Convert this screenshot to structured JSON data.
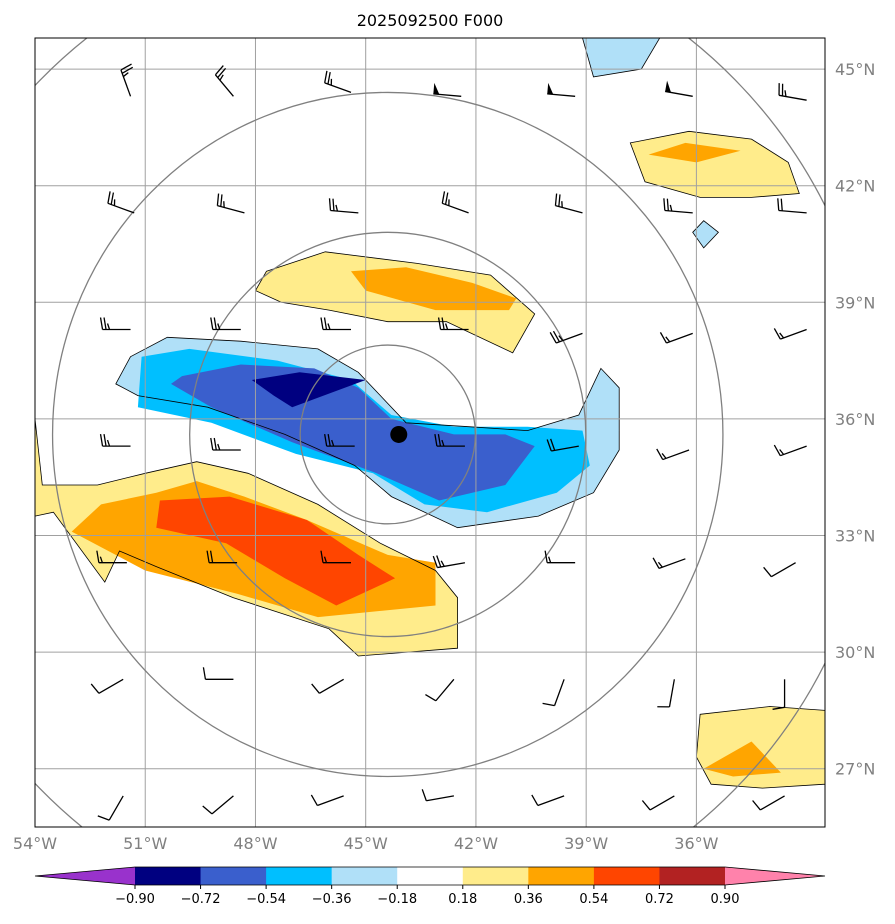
{
  "chart_data": {
    "type": "heatmap",
    "title": "2025092500 F000",
    "projection": "polar stereographic map with filled contours, wind barbs and range rings",
    "lon_range": [
      -54,
      -32.5
    ],
    "lat_range": [
      25.5,
      45.8
    ],
    "lon_ticks": [
      -54,
      -51,
      -48,
      -45,
      -42,
      -39,
      -36
    ],
    "lat_ticks": [
      27,
      30,
      33,
      36,
      39,
      42,
      45
    ],
    "lon_tick_labels": [
      "54°W",
      "51°W",
      "48°W",
      "45°W",
      "42°W",
      "39°W",
      "36°W"
    ],
    "lat_tick_labels": [
      "27°N",
      "30°N",
      "33°N",
      "36°N",
      "39°N",
      "42°N",
      "45°N"
    ],
    "grid": true,
    "center_marker": {
      "lon": -44.1,
      "lat": 35.6
    },
    "range_rings_center": {
      "lon": -44.4,
      "lat": 35.6
    },
    "range_ring_radii_deg_lat": [
      2.3,
      5.2,
      8.8,
      12.9
    ],
    "colorbar": {
      "orientation": "horizontal",
      "extend": "both",
      "levels": [
        -0.9,
        -0.72,
        -0.54,
        -0.36,
        -0.18,
        0.18,
        0.36,
        0.54,
        0.72,
        0.9
      ],
      "tick_labels": [
        "−0.90",
        "−0.72",
        "−0.54",
        "−0.36",
        "−0.18",
        "0.18",
        "0.36",
        "0.54",
        "0.72",
        "0.90"
      ],
      "colors": [
        "#9932cc",
        "#000080",
        "#3a5fcd",
        "#00bfff",
        "#b0e0f8",
        "#ffffff",
        "#ffec8b",
        "#ffa500",
        "#ff4500",
        "#b22222",
        "#ff82ab"
      ]
    },
    "filled_regions": [
      {
        "level": -0.18,
        "color": "#b0e0f8",
        "points": [
          [
            -51.4,
            37.6
          ],
          [
            -50.4,
            38.1
          ],
          [
            -48.4,
            38.0
          ],
          [
            -46.3,
            37.8
          ],
          [
            -45.2,
            37.2
          ],
          [
            -43.9,
            35.9
          ],
          [
            -42.2,
            35.8
          ],
          [
            -40.6,
            35.7
          ],
          [
            -39.2,
            36.1
          ],
          [
            -38.6,
            37.3
          ],
          [
            -38.1,
            36.8
          ],
          [
            -38.1,
            35.2
          ],
          [
            -38.8,
            34.1
          ],
          [
            -40.3,
            33.5
          ],
          [
            -42.5,
            33.2
          ],
          [
            -44.3,
            34.0
          ],
          [
            -45.3,
            34.8
          ],
          [
            -47.2,
            35.6
          ],
          [
            -49.3,
            36.3
          ],
          [
            -51.2,
            36.6
          ],
          [
            -51.8,
            36.9
          ]
        ]
      },
      {
        "level": -0.36,
        "color": "#00bfff",
        "points": [
          [
            -51.1,
            37.6
          ],
          [
            -49.8,
            37.8
          ],
          [
            -47.4,
            37.5
          ],
          [
            -45.4,
            37.0
          ],
          [
            -44.3,
            36.1
          ],
          [
            -42.6,
            35.8
          ],
          [
            -40.6,
            35.8
          ],
          [
            -39.1,
            35.7
          ],
          [
            -38.9,
            34.8
          ],
          [
            -39.8,
            34.1
          ],
          [
            -41.7,
            33.6
          ],
          [
            -43.4,
            33.8
          ],
          [
            -44.8,
            34.6
          ],
          [
            -46.9,
            35.1
          ],
          [
            -49.2,
            35.9
          ],
          [
            -51.2,
            36.3
          ]
        ]
      },
      {
        "level": -0.54,
        "color": "#3a5fcd",
        "points": [
          [
            -50.0,
            37.1
          ],
          [
            -48.4,
            37.4
          ],
          [
            -46.4,
            37.3
          ],
          [
            -45.2,
            36.8
          ],
          [
            -44.3,
            36.0
          ],
          [
            -42.6,
            35.6
          ],
          [
            -41.2,
            35.6
          ],
          [
            -40.4,
            35.3
          ],
          [
            -41.2,
            34.3
          ],
          [
            -43.0,
            33.9
          ],
          [
            -44.7,
            34.6
          ],
          [
            -47.0,
            35.4
          ],
          [
            -49.2,
            36.3
          ],
          [
            -50.3,
            36.9
          ]
        ]
      },
      {
        "level": -0.72,
        "color": "#000080",
        "points": [
          [
            -48.1,
            37.0
          ],
          [
            -46.8,
            37.2
          ],
          [
            -45.0,
            37.0
          ],
          [
            -47.0,
            36.3
          ],
          [
            -47.5,
            36.6
          ]
        ]
      },
      {
        "level": 0.18,
        "color": "#ffec8b",
        "points": [
          [
            -54,
            36.0
          ],
          [
            -54,
            33.5
          ],
          [
            -53.5,
            33.6
          ],
          [
            -52.1,
            31.8
          ],
          [
            -51.7,
            32.6
          ],
          [
            -50.7,
            32.2
          ],
          [
            -48.6,
            31.4
          ],
          [
            -46.0,
            30.6
          ],
          [
            -45.2,
            29.9
          ],
          [
            -42.5,
            30.1
          ],
          [
            -42.5,
            31.4
          ],
          [
            -43.1,
            32.1
          ],
          [
            -44.6,
            32.8
          ],
          [
            -46.3,
            33.8
          ],
          [
            -48.2,
            34.6
          ],
          [
            -49.6,
            34.9
          ],
          [
            -51.0,
            34.6
          ],
          [
            -52.3,
            34.3
          ],
          [
            -53.8,
            34.3
          ]
        ]
      },
      {
        "level": 0.36,
        "color": "#ffa500",
        "points": [
          [
            -53.0,
            33.1
          ],
          [
            -51.0,
            32.1
          ],
          [
            -48.5,
            31.5
          ],
          [
            -46.3,
            30.9
          ],
          [
            -43.1,
            31.2
          ],
          [
            -43.1,
            32.3
          ],
          [
            -44.4,
            32.5
          ],
          [
            -46.6,
            33.4
          ],
          [
            -48.3,
            34.0
          ],
          [
            -49.6,
            34.4
          ],
          [
            -50.7,
            34.1
          ],
          [
            -52.2,
            33.8
          ]
        ]
      },
      {
        "level": 0.54,
        "color": "#ff4500",
        "points": [
          [
            -50.7,
            33.2
          ],
          [
            -48.8,
            32.8
          ],
          [
            -47.2,
            31.9
          ],
          [
            -45.8,
            31.2
          ],
          [
            -44.2,
            31.9
          ],
          [
            -45.2,
            32.5
          ],
          [
            -46.6,
            33.4
          ],
          [
            -48.7,
            34.0
          ],
          [
            -50.6,
            33.9
          ]
        ]
      },
      {
        "level": 0.18,
        "color": "#ffec8b",
        "points": [
          [
            -47.7,
            39.8
          ],
          [
            -46.1,
            40.3
          ],
          [
            -43.6,
            40.0
          ],
          [
            -41.6,
            39.7
          ],
          [
            -40.4,
            38.7
          ],
          [
            -41.0,
            37.7
          ],
          [
            -42.8,
            38.5
          ],
          [
            -44.4,
            38.5
          ],
          [
            -46.0,
            38.8
          ],
          [
            -47.3,
            39.0
          ],
          [
            -48.0,
            39.3
          ]
        ]
      },
      {
        "level": 0.36,
        "color": "#ffa500",
        "points": [
          [
            -45.4,
            39.8
          ],
          [
            -43.9,
            39.9
          ],
          [
            -42.1,
            39.5
          ],
          [
            -40.9,
            39.1
          ],
          [
            -41.1,
            38.8
          ],
          [
            -43.1,
            38.8
          ],
          [
            -45.0,
            39.3
          ]
        ]
      },
      {
        "level": 0.18,
        "color": "#ffec8b",
        "points": [
          [
            -37.8,
            43.1
          ],
          [
            -36.2,
            43.4
          ],
          [
            -34.5,
            43.2
          ],
          [
            -33.5,
            42.6
          ],
          [
            -33.2,
            41.8
          ],
          [
            -34.5,
            41.7
          ],
          [
            -35.9,
            41.7
          ],
          [
            -37.4,
            42.1
          ]
        ]
      },
      {
        "level": 0.36,
        "color": "#ffa500",
        "points": [
          [
            -37.3,
            42.8
          ],
          [
            -36.3,
            43.1
          ],
          [
            -34.8,
            42.9
          ],
          [
            -36.0,
            42.6
          ]
        ]
      },
      {
        "level": 0.18,
        "color": "#ffec8b",
        "points": [
          [
            -35.9,
            28.4
          ],
          [
            -34.0,
            28.6
          ],
          [
            -32.5,
            28.5
          ],
          [
            -32.5,
            26.6
          ],
          [
            -34.2,
            26.5
          ],
          [
            -35.6,
            26.6
          ],
          [
            -36.0,
            27.3
          ]
        ]
      },
      {
        "level": 0.36,
        "color": "#ffa500",
        "points": [
          [
            -35.8,
            27.0
          ],
          [
            -34.5,
            27.7
          ],
          [
            -33.7,
            26.9
          ],
          [
            -35.0,
            26.8
          ]
        ]
      },
      {
        "level": -0.18,
        "color": "#b0e0f8",
        "points": [
          [
            -39.1,
            45.8
          ],
          [
            -37.0,
            45.8
          ],
          [
            -37.5,
            45.0
          ],
          [
            -38.8,
            44.8
          ]
        ]
      },
      {
        "level": -0.18,
        "color": "#b0e0f8",
        "points": [
          [
            -36.1,
            40.8
          ],
          [
            -35.8,
            41.1
          ],
          [
            -35.4,
            40.8
          ],
          [
            -35.8,
            40.4
          ]
        ]
      }
    ],
    "wind_barbs": [
      {
        "lon": -51.4,
        "lat": 44.3,
        "dir": 340,
        "speed": 25
      },
      {
        "lon": -48.6,
        "lat": 44.3,
        "dir": 320,
        "speed": 25
      },
      {
        "lon": -45.4,
        "lat": 44.4,
        "dir": 290,
        "speed": 25
      },
      {
        "lon": -42.4,
        "lat": 44.3,
        "dir": 275,
        "speed": 50
      },
      {
        "lon": -39.3,
        "lat": 44.3,
        "dir": 275,
        "speed": 50
      },
      {
        "lon": -36.1,
        "lat": 44.3,
        "dir": 280,
        "speed": 50
      },
      {
        "lon": -33.0,
        "lat": 44.2,
        "dir": 280,
        "speed": 25
      },
      {
        "lon": -51.3,
        "lat": 41.3,
        "dir": 290,
        "speed": 25
      },
      {
        "lon": -48.3,
        "lat": 41.3,
        "dir": 285,
        "speed": 25
      },
      {
        "lon": -45.2,
        "lat": 41.3,
        "dir": 275,
        "speed": 25
      },
      {
        "lon": -42.2,
        "lat": 41.3,
        "dir": 290,
        "speed": 25
      },
      {
        "lon": -39.1,
        "lat": 41.3,
        "dir": 285,
        "speed": 25
      },
      {
        "lon": -36.1,
        "lat": 41.3,
        "dir": 275,
        "speed": 25
      },
      {
        "lon": -33.0,
        "lat": 41.3,
        "dir": 275,
        "speed": 20
      },
      {
        "lon": -51.4,
        "lat": 38.3,
        "dir": 270,
        "speed": 25
      },
      {
        "lon": -48.4,
        "lat": 38.3,
        "dir": 270,
        "speed": 25
      },
      {
        "lon": -45.4,
        "lat": 38.3,
        "dir": 270,
        "speed": 25
      },
      {
        "lon": -42.2,
        "lat": 38.3,
        "dir": 270,
        "speed": 25
      },
      {
        "lon": -39.1,
        "lat": 38.2,
        "dir": 250,
        "speed": 25
      },
      {
        "lon": -36.1,
        "lat": 38.2,
        "dir": 250,
        "speed": 15
      },
      {
        "lon": -33.0,
        "lat": 38.3,
        "dir": 250,
        "speed": 15
      },
      {
        "lon": -51.4,
        "lat": 35.3,
        "dir": 270,
        "speed": 25
      },
      {
        "lon": -48.4,
        "lat": 35.2,
        "dir": 270,
        "speed": 25
      },
      {
        "lon": -45.3,
        "lat": 35.3,
        "dir": 270,
        "speed": 25
      },
      {
        "lon": -42.3,
        "lat": 35.3,
        "dir": 270,
        "speed": 25
      },
      {
        "lon": -39.2,
        "lat": 35.3,
        "dir": 260,
        "speed": 20
      },
      {
        "lon": -36.2,
        "lat": 35.2,
        "dir": 250,
        "speed": 15
      },
      {
        "lon": -33.0,
        "lat": 35.3,
        "dir": 250,
        "speed": 15
      },
      {
        "lon": -51.5,
        "lat": 32.3,
        "dir": 270,
        "speed": 15
      },
      {
        "lon": -48.5,
        "lat": 32.3,
        "dir": 270,
        "speed": 20
      },
      {
        "lon": -45.4,
        "lat": 32.3,
        "dir": 270,
        "speed": 15
      },
      {
        "lon": -42.3,
        "lat": 32.3,
        "dir": 260,
        "speed": 25
      },
      {
        "lon": -39.3,
        "lat": 32.3,
        "dir": 270,
        "speed": 15
      },
      {
        "lon": -36.3,
        "lat": 32.4,
        "dir": 250,
        "speed": 15
      },
      {
        "lon": -33.3,
        "lat": 32.3,
        "dir": 240,
        "speed": 10
      },
      {
        "lon": -51.6,
        "lat": 29.3,
        "dir": 240,
        "speed": 10
      },
      {
        "lon": -48.6,
        "lat": 29.3,
        "dir": 270,
        "speed": 10
      },
      {
        "lon": -45.6,
        "lat": 29.3,
        "dir": 240,
        "speed": 10
      },
      {
        "lon": -42.6,
        "lat": 29.3,
        "dir": 220,
        "speed": 10
      },
      {
        "lon": -39.6,
        "lat": 29.3,
        "dir": 200,
        "speed": 10
      },
      {
        "lon": -36.6,
        "lat": 29.3,
        "dir": 190,
        "speed": 10
      },
      {
        "lon": -33.6,
        "lat": 29.3,
        "dir": 180,
        "speed": 10
      },
      {
        "lon": -51.6,
        "lat": 26.3,
        "dir": 210,
        "speed": 10
      },
      {
        "lon": -48.6,
        "lat": 26.3,
        "dir": 230,
        "speed": 10
      },
      {
        "lon": -45.6,
        "lat": 26.3,
        "dir": 250,
        "speed": 10
      },
      {
        "lon": -42.6,
        "lat": 26.3,
        "dir": 260,
        "speed": 10
      },
      {
        "lon": -39.6,
        "lat": 26.3,
        "dir": 250,
        "speed": 10
      },
      {
        "lon": -36.6,
        "lat": 26.3,
        "dir": 240,
        "speed": 10
      },
      {
        "lon": -33.6,
        "lat": 26.3,
        "dir": 240,
        "speed": 10
      }
    ]
  }
}
